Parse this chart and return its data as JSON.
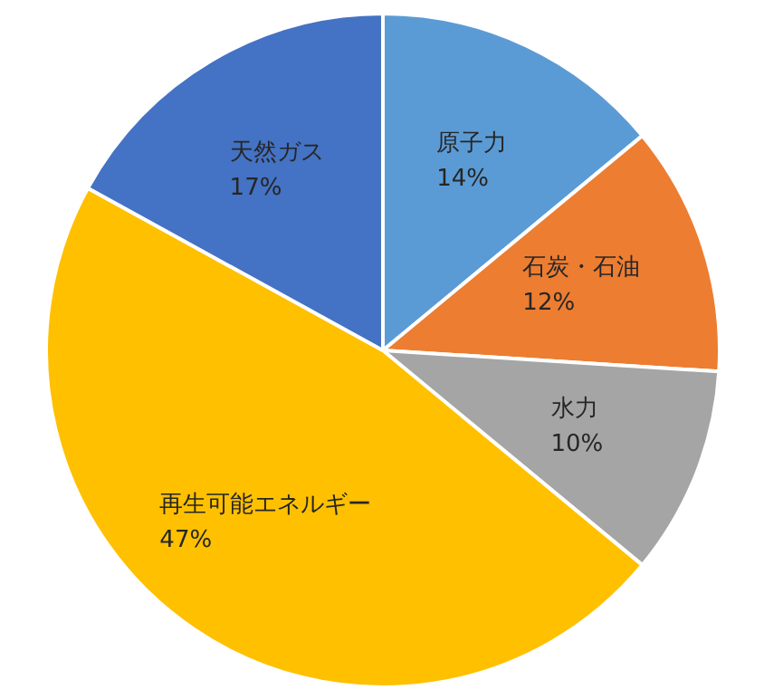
{
  "chart_data": {
    "type": "pie",
    "categories": [
      "原子力",
      "石炭・石油",
      "水力",
      "再生可能エネルギー",
      "天然ガス"
    ],
    "values": [
      14,
      12,
      10,
      47,
      17
    ],
    "colors": [
      "#5b9bd5",
      "#ed7d31",
      "#a5a5a5",
      "#ffc000",
      "#4472c4"
    ],
    "value_labels": [
      "14%",
      "12%",
      "10%",
      "47%",
      "17%"
    ]
  }
}
